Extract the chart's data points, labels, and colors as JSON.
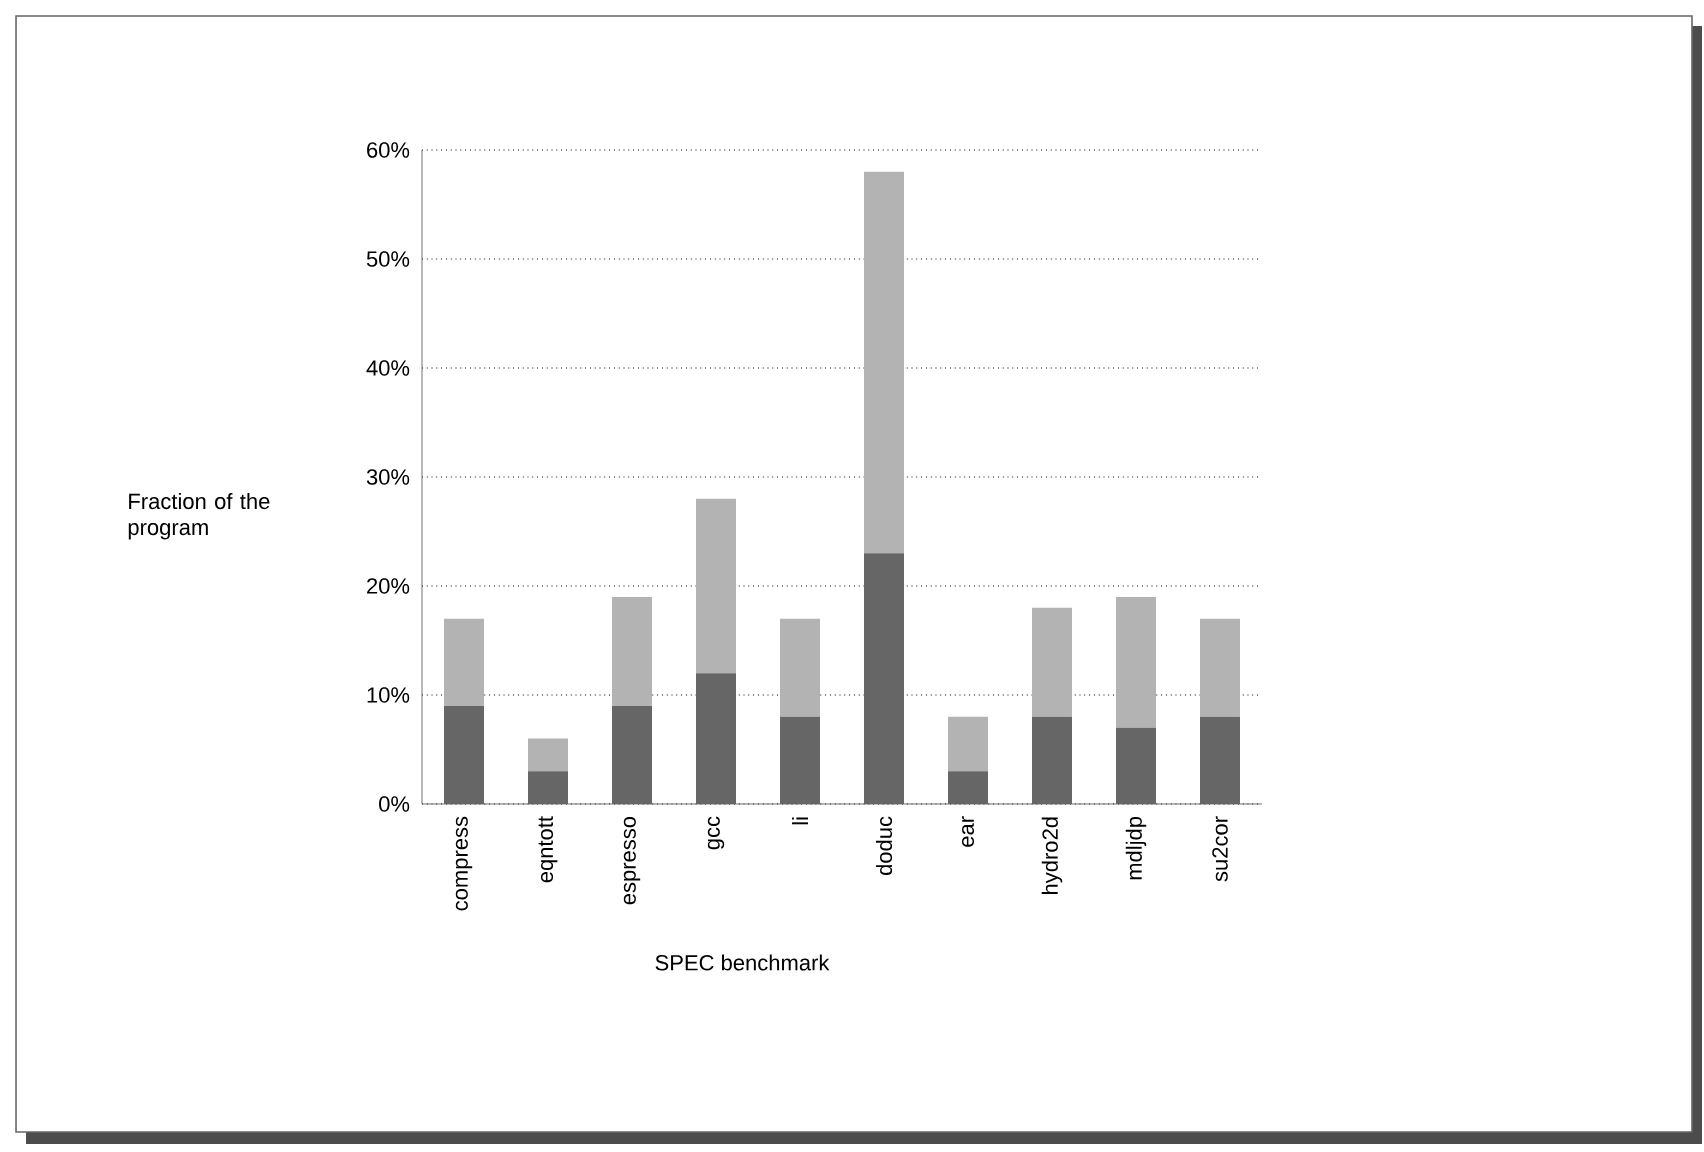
{
  "chart_data": {
    "type": "bar",
    "stacked": true,
    "xlabel": "SPEC benchmark",
    "ylabel": "Fraction of the program",
    "categories": [
      "compress",
      "eqntott",
      "espresso",
      "gcc",
      "li",
      "doduc",
      "ear",
      "hydro2d",
      "mdljdp",
      "su2cor"
    ],
    "series": [
      {
        "color": "#666666",
        "values": [
          9,
          3,
          9,
          12,
          8,
          23,
          3,
          8,
          7,
          8
        ]
      },
      {
        "color": "#b3b3b3",
        "values": [
          8,
          3,
          10,
          16,
          9,
          35,
          5,
          10,
          12,
          9
        ]
      }
    ],
    "ylim": [
      0,
      60
    ],
    "yticks": [
      {
        "value": 0,
        "label": "0%"
      },
      {
        "value": 10,
        "label": "10%"
      },
      {
        "value": 20,
        "label": "20%"
      },
      {
        "value": 30,
        "label": "30%"
      },
      {
        "value": 40,
        "label": "40%"
      },
      {
        "value": 50,
        "label": "50%"
      },
      {
        "value": 60,
        "label": "60%"
      }
    ],
    "grid": "y"
  }
}
